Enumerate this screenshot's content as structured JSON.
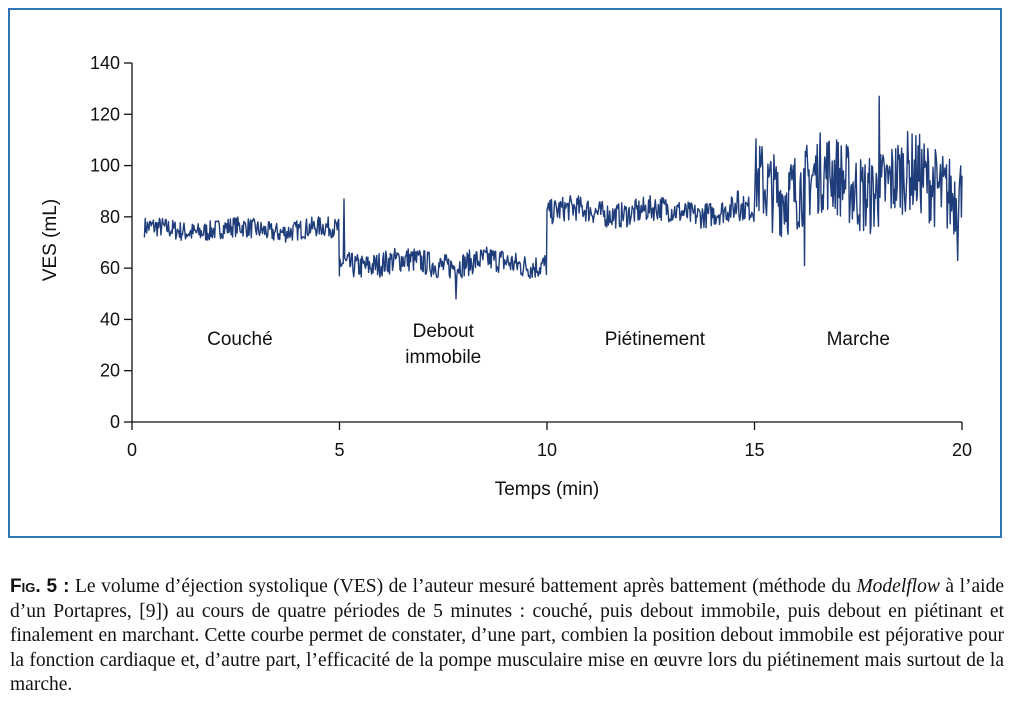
{
  "figure": {
    "caption": {
      "label": "Fig. 5 :",
      "text_part1": " Le volume d’éjection systolique (VES) de l’auteur mesuré battement après battement (méthode du ",
      "italic_term": "Modelflow",
      "text_part2": " à l’aide d’un Portapres, [9]) au cours de quatre périodes de 5 minutes : couché, puis debout immobile, puis debout en piétinant et finalement en marchant. Cette courbe permet de constater, d’une part, combien la position debout immobile est péjorative pour la fonction cardiaque et, d’autre part, l’efficacité de la pompe musculaire mise en œuvre lors du piétinement mais surtout de la marche."
    }
  },
  "chart_data": {
    "type": "line",
    "title": "",
    "xlabel": "Temps (min)",
    "ylabel": "VES (mL)",
    "xlim": [
      0,
      20
    ],
    "ylim": [
      0,
      140
    ],
    "x_ticks": [
      "0",
      "5",
      "10",
      "15",
      "20"
    ],
    "y_ticks": [
      "0",
      "20",
      "40",
      "60",
      "80",
      "100",
      "120",
      "140"
    ],
    "grid": false,
    "line_color": "#1f3d7a",
    "frame_color": "#2f74b5",
    "periods": [
      {
        "label_lines": [
          "Couché"
        ],
        "x_center": 2.6,
        "y": 30
      },
      {
        "label_lines": [
          "Debout",
          "immobile"
        ],
        "x_center": 7.5,
        "y": 30
      },
      {
        "label_lines": [
          "Piétinement"
        ],
        "x_center": 12.6,
        "y": 30
      },
      {
        "label_lines": [
          "Marche"
        ],
        "x_center": 17.5,
        "y": 30
      }
    ],
    "series": [
      {
        "segments": [
          {
            "x_start": 0.3,
            "x_end": 5.0,
            "mean": 75,
            "amplitude": 4,
            "spikes": [
              [
                5.0,
                57
              ]
            ]
          },
          {
            "x_start": 5.0,
            "x_end": 10.0,
            "mean": 62,
            "amplitude": 5,
            "spikes": [
              [
                5.1,
                87
              ],
              [
                7.8,
                48
              ]
            ]
          },
          {
            "x_start": 10.0,
            "x_end": 15.0,
            "mean": 82,
            "amplitude": 5,
            "spikes": [
              [
                14.6,
                90
              ]
            ]
          },
          {
            "x_start": 15.0,
            "x_end": 20.0,
            "mean": 93,
            "amplitude": 16,
            "spikes": [
              [
                18.0,
                127
              ],
              [
                16.2,
                61
              ],
              [
                19.9,
                63
              ]
            ]
          }
        ],
        "last_point": [
          20.0,
          96
        ]
      }
    ]
  }
}
